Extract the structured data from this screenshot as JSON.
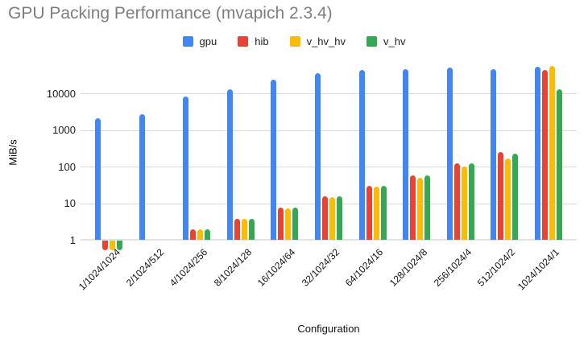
{
  "title": "GPU Packing Performance (mvapich 2.3.4)",
  "axes": {
    "y_title": "MiB/s",
    "x_title": "Configuration",
    "y_tick_labels": [
      "1",
      "10",
      "100",
      "1000",
      "10000"
    ]
  },
  "legend": {
    "items": [
      {
        "label": "gpu",
        "color": "#4285F4"
      },
      {
        "label": "hib",
        "color": "#EA4335"
      },
      {
        "label": "v_hv_hv",
        "color": "#FBBC04"
      },
      {
        "label": "v_hv",
        "color": "#34A853"
      }
    ]
  },
  "colors": {
    "blue": "#4285F4",
    "red": "#EA4335",
    "yellow": "#FBBC04",
    "green": "#34A853",
    "title_gray": "#7e7e7e",
    "gridline": "#d9d9d9"
  },
  "chart_data": {
    "type": "bar",
    "title": "GPU Packing Performance (mvapich 2.3.4)",
    "xlabel": "Configuration",
    "ylabel": "MiB/s",
    "y_scale": "log",
    "y_ticks": [
      1,
      10,
      100,
      1000,
      10000
    ],
    "ylim": [
      0.5,
      80000
    ],
    "grid": true,
    "legend_position": "top",
    "categories": [
      "1/1024/1024",
      "2/1024/512",
      "4/1024/256",
      "8/1024/128",
      "16/1024/64",
      "32/1024/32",
      "64/1024/16",
      "128/1024/8",
      "256/1024/4",
      "512/1024/2",
      "1024/1024/1"
    ],
    "series": [
      {
        "name": "gpu",
        "color": "#4285F4",
        "values": [
          2100,
          2700,
          8000,
          13000,
          24000,
          36000,
          43000,
          46000,
          50000,
          46000,
          52000
        ]
      },
      {
        "name": "hib",
        "color": "#EA4335",
        "values": [
          0.55,
          1,
          1.9,
          3.8,
          7.5,
          15,
          30,
          58,
          125,
          245,
          44000
        ]
      },
      {
        "name": "v_hv_hv",
        "color": "#FBBC04",
        "values": [
          0.55,
          1,
          1.9,
          3.7,
          7.2,
          14.5,
          28,
          50,
          100,
          162,
          55000
        ]
      },
      {
        "name": "v_hv",
        "color": "#34A853",
        "values": [
          0.55,
          1,
          1.9,
          3.8,
          7.5,
          15,
          30,
          57,
          122,
          228,
          13000
        ]
      }
    ]
  }
}
